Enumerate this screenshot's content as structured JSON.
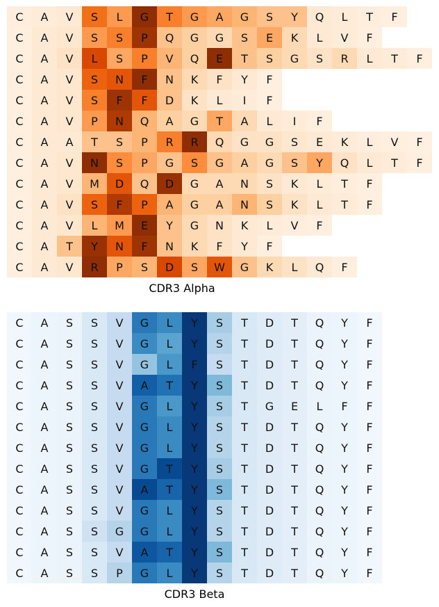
{
  "chart_data": [
    {
      "type": "heatmap",
      "title": "CDR3 Alpha",
      "colormap": "Oranges",
      "rows": [
        [
          "C",
          "A",
          "V",
          "S",
          "L",
          "G",
          "T",
          "G",
          "A",
          "G",
          "S",
          "Y",
          "Q",
          "L",
          "T",
          "F"
        ],
        [
          "C",
          "A",
          "V",
          "S",
          "S",
          "P",
          "Q",
          "G",
          "G",
          "S",
          "E",
          "K",
          "L",
          "V",
          "F"
        ],
        [
          "C",
          "A",
          "V",
          "L",
          "S",
          "P",
          "V",
          "Q",
          "E",
          "T",
          "S",
          "G",
          "S",
          "R",
          "L",
          "T",
          "F"
        ],
        [
          "C",
          "A",
          "V",
          "S",
          "N",
          "F",
          "N",
          "K",
          "F",
          "Y",
          "F"
        ],
        [
          "C",
          "A",
          "V",
          "S",
          "F",
          "F",
          "D",
          "K",
          "L",
          "I",
          "F"
        ],
        [
          "C",
          "A",
          "V",
          "P",
          "N",
          "Q",
          "A",
          "G",
          "T",
          "A",
          "L",
          "I",
          "F"
        ],
        [
          "C",
          "A",
          "A",
          "T",
          "S",
          "P",
          "R",
          "R",
          "Q",
          "G",
          "G",
          "S",
          "E",
          "K",
          "L",
          "V",
          "F"
        ],
        [
          "C",
          "A",
          "V",
          "N",
          "S",
          "P",
          "G",
          "S",
          "G",
          "A",
          "G",
          "S",
          "Y",
          "Q",
          "L",
          "T",
          "F"
        ],
        [
          "C",
          "A",
          "V",
          "M",
          "D",
          "Q",
          "D",
          "G",
          "A",
          "N",
          "S",
          "K",
          "L",
          "T",
          "F"
        ],
        [
          "C",
          "A",
          "V",
          "S",
          "F",
          "P",
          "A",
          "G",
          "A",
          "N",
          "S",
          "K",
          "L",
          "T",
          "F"
        ],
        [
          "C",
          "A",
          "V",
          "L",
          "M",
          "E",
          "Y",
          "G",
          "N",
          "K",
          "L",
          "V",
          "F"
        ],
        [
          "C",
          "A",
          "T",
          "Y",
          "N",
          "F",
          "N",
          "K",
          "F",
          "Y",
          "F"
        ],
        [
          "C",
          "A",
          "V",
          "R",
          "P",
          "S",
          "D",
          "S",
          "W",
          "G",
          "K",
          "L",
          "Q",
          "F"
        ]
      ],
      "weights": [
        [
          0.06,
          0.08,
          0.1,
          0.6,
          0.45,
          0.95,
          0.55,
          0.45,
          0.4,
          0.35,
          0.3,
          0.3,
          0.1,
          0.08,
          0.06,
          0.05
        ],
        [
          0.05,
          0.1,
          0.12,
          0.45,
          0.55,
          0.9,
          0.3,
          0.25,
          0.2,
          0.3,
          0.4,
          0.2,
          0.1,
          0.08,
          0.05
        ],
        [
          0.05,
          0.1,
          0.15,
          0.75,
          0.4,
          0.55,
          0.35,
          0.25,
          0.95,
          0.3,
          0.25,
          0.2,
          0.15,
          0.2,
          0.1,
          0.08,
          0.05
        ],
        [
          0.05,
          0.1,
          0.12,
          0.65,
          0.7,
          0.95,
          0.3,
          0.2,
          0.15,
          0.1,
          0.05
        ],
        [
          0.05,
          0.1,
          0.12,
          0.55,
          0.9,
          0.7,
          0.3,
          0.15,
          0.1,
          0.08,
          0.05
        ],
        [
          0.05,
          0.1,
          0.12,
          0.45,
          0.85,
          0.35,
          0.25,
          0.2,
          0.4,
          0.2,
          0.1,
          0.08,
          0.05
        ],
        [
          0.05,
          0.1,
          0.1,
          0.3,
          0.3,
          0.35,
          0.55,
          0.95,
          0.2,
          0.15,
          0.15,
          0.12,
          0.1,
          0.08,
          0.06,
          0.05,
          0.04
        ],
        [
          0.05,
          0.1,
          0.12,
          0.95,
          0.5,
          0.4,
          0.3,
          0.5,
          0.3,
          0.25,
          0.2,
          0.3,
          0.4,
          0.15,
          0.1,
          0.08,
          0.05
        ],
        [
          0.05,
          0.1,
          0.12,
          0.35,
          0.7,
          0.3,
          0.92,
          0.2,
          0.2,
          0.2,
          0.15,
          0.1,
          0.08,
          0.06,
          0.05
        ],
        [
          0.05,
          0.1,
          0.15,
          0.65,
          0.85,
          0.65,
          0.35,
          0.25,
          0.25,
          0.35,
          0.25,
          0.15,
          0.1,
          0.08,
          0.05
        ],
        [
          0.05,
          0.1,
          0.12,
          0.35,
          0.45,
          0.95,
          0.3,
          0.2,
          0.15,
          0.1,
          0.08,
          0.06,
          0.05
        ],
        [
          0.05,
          0.1,
          0.3,
          0.92,
          0.7,
          0.9,
          0.3,
          0.2,
          0.15,
          0.1,
          0.05
        ],
        [
          0.05,
          0.1,
          0.12,
          0.95,
          0.4,
          0.35,
          0.75,
          0.4,
          0.7,
          0.3,
          0.2,
          0.15,
          0.1,
          0.05
        ]
      ]
    },
    {
      "type": "heatmap",
      "title": "CDR3 Beta",
      "colormap": "Blues",
      "rows": [
        [
          "C",
          "A",
          "S",
          "S",
          "V",
          "G",
          "L",
          "Y",
          "S",
          "T",
          "D",
          "T",
          "Q",
          "Y",
          "F"
        ],
        [
          "C",
          "A",
          "S",
          "S",
          "V",
          "G",
          "L",
          "Y",
          "S",
          "T",
          "D",
          "T",
          "Q",
          "Y",
          "F"
        ],
        [
          "C",
          "A",
          "S",
          "S",
          "V",
          "G",
          "L",
          "F",
          "S",
          "T",
          "D",
          "T",
          "Q",
          "Y",
          "F"
        ],
        [
          "C",
          "A",
          "S",
          "S",
          "V",
          "A",
          "T",
          "Y",
          "S",
          "T",
          "D",
          "T",
          "Q",
          "Y",
          "F"
        ],
        [
          "C",
          "A",
          "S",
          "S",
          "V",
          "G",
          "L",
          "Y",
          "S",
          "T",
          "G",
          "E",
          "L",
          "F",
          "F"
        ],
        [
          "C",
          "A",
          "S",
          "S",
          "V",
          "G",
          "L",
          "Y",
          "S",
          "T",
          "D",
          "T",
          "Q",
          "Y",
          "F"
        ],
        [
          "C",
          "A",
          "S",
          "S",
          "V",
          "G",
          "L",
          "Y",
          "S",
          "T",
          "D",
          "T",
          "Q",
          "Y",
          "F"
        ],
        [
          "C",
          "A",
          "S",
          "S",
          "V",
          "G",
          "T",
          "Y",
          "S",
          "T",
          "D",
          "T",
          "Q",
          "Y",
          "F"
        ],
        [
          "C",
          "A",
          "S",
          "S",
          "V",
          "A",
          "T",
          "Y",
          "S",
          "T",
          "D",
          "T",
          "Q",
          "Y",
          "F"
        ],
        [
          "C",
          "A",
          "S",
          "S",
          "V",
          "G",
          "L",
          "Y",
          "S",
          "T",
          "D",
          "T",
          "Q",
          "Y",
          "F"
        ],
        [
          "C",
          "A",
          "S",
          "S",
          "G",
          "G",
          "L",
          "Y",
          "S",
          "T",
          "D",
          "T",
          "Q",
          "Y",
          "F"
        ],
        [
          "C",
          "A",
          "S",
          "S",
          "V",
          "A",
          "T",
          "Y",
          "S",
          "T",
          "D",
          "T",
          "Q",
          "Y",
          "F"
        ],
        [
          "C",
          "A",
          "S",
          "S",
          "P",
          "G",
          "L",
          "Y",
          "S",
          "T",
          "D",
          "T",
          "Q",
          "Y",
          "F"
        ]
      ],
      "weights": [
        [
          0.03,
          0.05,
          0.06,
          0.15,
          0.25,
          0.72,
          0.65,
          0.97,
          0.35,
          0.15,
          0.12,
          0.1,
          0.06,
          0.05,
          0.03
        ],
        [
          0.03,
          0.05,
          0.06,
          0.15,
          0.25,
          0.65,
          0.55,
          0.97,
          0.3,
          0.15,
          0.12,
          0.1,
          0.06,
          0.05,
          0.03
        ],
        [
          0.03,
          0.05,
          0.06,
          0.15,
          0.25,
          0.4,
          0.6,
          0.97,
          0.25,
          0.15,
          0.12,
          0.1,
          0.06,
          0.05,
          0.03
        ],
        [
          0.03,
          0.05,
          0.06,
          0.15,
          0.25,
          0.82,
          0.75,
          0.97,
          0.45,
          0.15,
          0.12,
          0.1,
          0.06,
          0.05,
          0.03
        ],
        [
          0.03,
          0.05,
          0.06,
          0.15,
          0.25,
          0.72,
          0.6,
          0.97,
          0.35,
          0.15,
          0.12,
          0.1,
          0.06,
          0.05,
          0.03
        ],
        [
          0.03,
          0.05,
          0.06,
          0.15,
          0.25,
          0.72,
          0.65,
          0.97,
          0.3,
          0.15,
          0.12,
          0.1,
          0.06,
          0.05,
          0.03
        ],
        [
          0.03,
          0.05,
          0.06,
          0.15,
          0.25,
          0.72,
          0.65,
          0.97,
          0.3,
          0.15,
          0.12,
          0.1,
          0.06,
          0.05,
          0.03
        ],
        [
          0.03,
          0.05,
          0.06,
          0.15,
          0.25,
          0.72,
          0.9,
          0.97,
          0.35,
          0.15,
          0.12,
          0.1,
          0.06,
          0.05,
          0.03
        ],
        [
          0.03,
          0.05,
          0.06,
          0.15,
          0.25,
          0.9,
          0.8,
          0.97,
          0.45,
          0.15,
          0.12,
          0.1,
          0.06,
          0.05,
          0.03
        ],
        [
          0.03,
          0.05,
          0.06,
          0.15,
          0.25,
          0.72,
          0.65,
          0.97,
          0.3,
          0.15,
          0.12,
          0.1,
          0.06,
          0.05,
          0.03
        ],
        [
          0.03,
          0.05,
          0.06,
          0.2,
          0.3,
          0.72,
          0.65,
          0.97,
          0.3,
          0.15,
          0.12,
          0.1,
          0.06,
          0.05,
          0.03
        ],
        [
          0.03,
          0.05,
          0.06,
          0.15,
          0.25,
          0.85,
          0.8,
          0.97,
          0.45,
          0.15,
          0.12,
          0.1,
          0.06,
          0.05,
          0.03
        ],
        [
          0.03,
          0.05,
          0.06,
          0.15,
          0.3,
          0.72,
          0.65,
          0.97,
          0.3,
          0.15,
          0.12,
          0.1,
          0.06,
          0.05,
          0.03
        ]
      ]
    }
  ]
}
